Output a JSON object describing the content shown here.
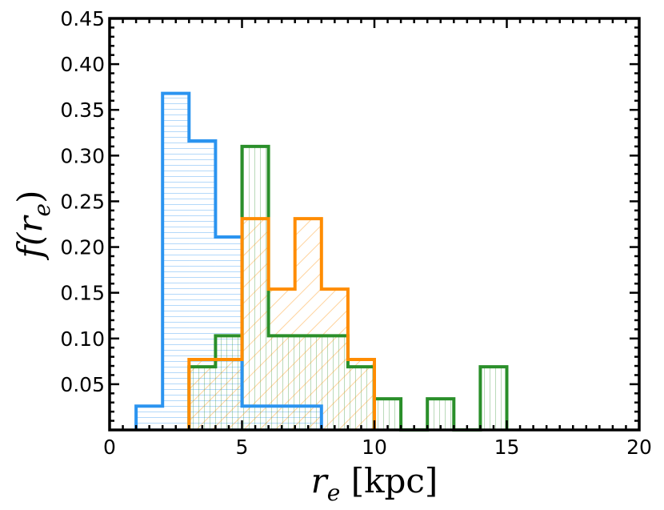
{
  "chart_data": {
    "type": "histogram",
    "xlabel_main": "r",
    "xlabel_sub": "e",
    "xlabel_unit": "[kpc]",
    "ylabel_prefix": "f(",
    "ylabel_main": "r",
    "ylabel_sub": "e",
    "ylabel_suffix": ")",
    "xlim": [
      0,
      20
    ],
    "ylim": [
      0,
      0.45
    ],
    "xticks": [
      0,
      5,
      10,
      15,
      20
    ],
    "xtick_labels": [
      "0",
      "5",
      "10",
      "15",
      "20"
    ],
    "yticks": [
      0.05,
      0.1,
      0.15,
      0.2,
      0.25,
      0.3,
      0.35,
      0.4,
      0.45
    ],
    "ytick_labels": [
      "0.05",
      "0.10",
      "0.15",
      "0.20",
      "0.25",
      "0.30",
      "0.35",
      "0.40",
      "0.45"
    ],
    "grid": false,
    "series": [
      {
        "color": "#2b94f0",
        "hatch": "horizontal",
        "bins": [
          {
            "x0": 1,
            "x1": 2,
            "y": 0.026
          },
          {
            "x0": 2,
            "x1": 3,
            "y": 0.368
          },
          {
            "x0": 3,
            "x1": 4,
            "y": 0.316
          },
          {
            "x0": 4,
            "x1": 5,
            "y": 0.211
          },
          {
            "x0": 5,
            "x1": 8,
            "y": 0.026
          }
        ]
      },
      {
        "color": "#2a8f2a",
        "hatch": "vertical",
        "bins": [
          {
            "x0": 3,
            "x1": 4,
            "y": 0.069
          },
          {
            "x0": 4,
            "x1": 5,
            "y": 0.103
          },
          {
            "x0": 5,
            "x1": 6,
            "y": 0.31
          },
          {
            "x0": 6,
            "x1": 9,
            "y": 0.103
          },
          {
            "x0": 9,
            "x1": 10,
            "y": 0.069
          },
          {
            "x0": 10,
            "x1": 11,
            "y": 0.034
          },
          {
            "x0": 11,
            "x1": 12,
            "y": 0
          },
          {
            "x0": 12,
            "x1": 13,
            "y": 0.034
          },
          {
            "x0": 13,
            "x1": 14,
            "y": 0
          },
          {
            "x0": 14,
            "x1": 15,
            "y": 0.069
          }
        ]
      },
      {
        "color": "#ff8c00",
        "hatch": "diagonal",
        "bins": [
          {
            "x0": 3,
            "x1": 5,
            "y": 0.077
          },
          {
            "x0": 5,
            "x1": 6,
            "y": 0.231
          },
          {
            "x0": 6,
            "x1": 7,
            "y": 0.154
          },
          {
            "x0": 7,
            "x1": 8,
            "y": 0.231
          },
          {
            "x0": 8,
            "x1": 9,
            "y": 0.154
          },
          {
            "x0": 9,
            "x1": 10,
            "y": 0.077
          }
        ]
      }
    ]
  }
}
